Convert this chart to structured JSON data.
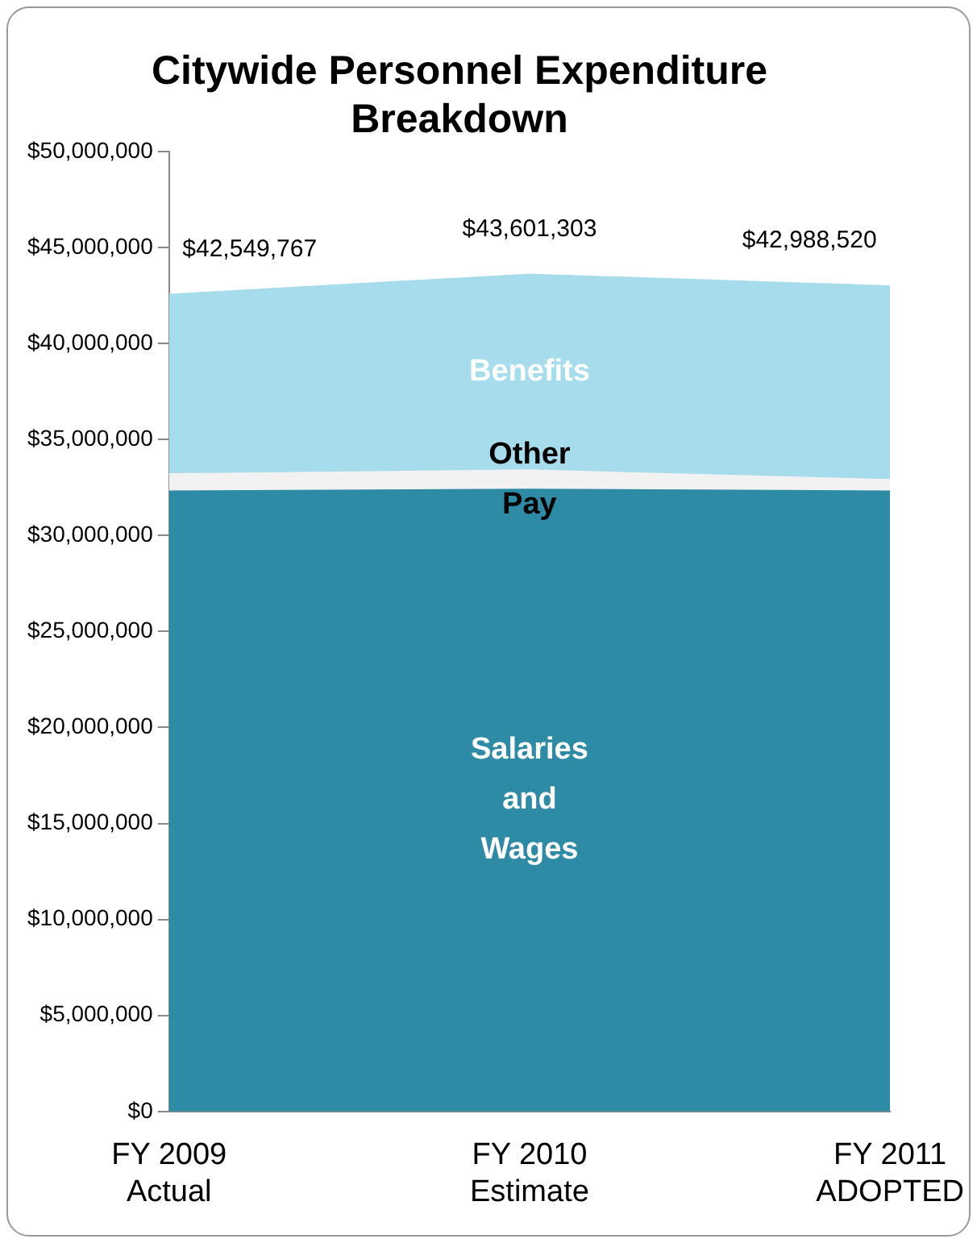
{
  "chart_data": {
    "type": "area",
    "title": "Citywide Personnel Expenditure Breakdown",
    "categories": [
      "FY 2009\nActual",
      "FY 2010\nEstimate",
      "FY 2011\nADOPTED"
    ],
    "stacked": true,
    "series": [
      {
        "name": "Salaries and Wages",
        "color": "#2e8ba5",
        "values": [
          32300000,
          32400000,
          32300000
        ]
      },
      {
        "name": "Other Pay",
        "color": "#f2f2f2",
        "values": [
          900000,
          1000000,
          600000
        ]
      },
      {
        "name": "Benefits",
        "color": "#a6dcec",
        "values": [
          9349767,
          10201303,
          10088520
        ]
      }
    ],
    "totals": [
      "$42,549,767",
      "$43,601,303",
      "$42,988,520"
    ],
    "ylim": [
      0,
      50000000
    ],
    "yticks": [
      {
        "value": 0,
        "label": "$0"
      },
      {
        "value": 5000000,
        "label": "$5,000,000"
      },
      {
        "value": 10000000,
        "label": "$10,000,000"
      },
      {
        "value": 15000000,
        "label": "$15,000,000"
      },
      {
        "value": 20000000,
        "label": "$20,000,000"
      },
      {
        "value": 25000000,
        "label": "$25,000,000"
      },
      {
        "value": 30000000,
        "label": "$30,000,000"
      },
      {
        "value": 35000000,
        "label": "$35,000,000"
      },
      {
        "value": 40000000,
        "label": "$40,000,000"
      },
      {
        "value": 45000000,
        "label": "$45,000,000"
      },
      {
        "value": 50000000,
        "label": "$50,000,000"
      }
    ],
    "legend": false
  }
}
